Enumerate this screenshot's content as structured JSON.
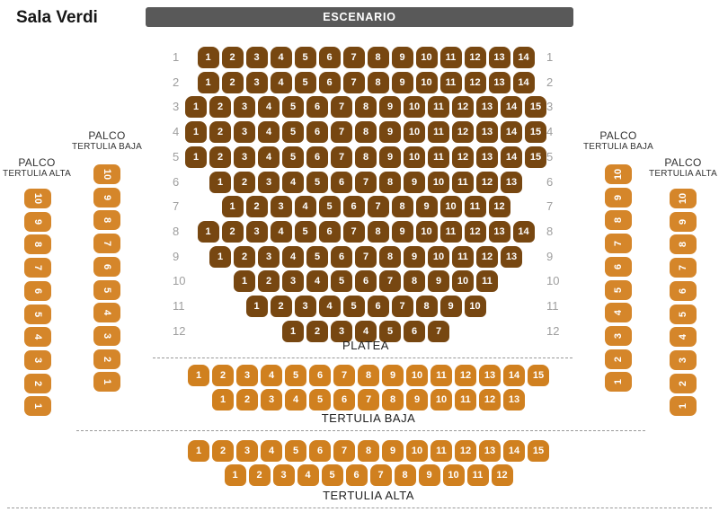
{
  "title": "Sala Verdi",
  "stage": {
    "label": "ESCENARIO"
  },
  "colors": {
    "stage_bg": "#595959",
    "stage_text": "#ffffff",
    "platea_seat": "#774711",
    "tertulia_seat": "#d0801f",
    "palco_seat": "#d5862a",
    "seat_text": "#ffffff",
    "row_label": "#9e9e9e",
    "section_label": "#212121",
    "divider": "#999999"
  },
  "platea": {
    "label": "PLATEA",
    "rows": [
      {
        "row": "1",
        "seats": [
          1,
          2,
          3,
          4,
          5,
          6,
          7,
          8,
          9,
          10,
          11,
          12,
          13,
          14
        ]
      },
      {
        "row": "2",
        "seats": [
          1,
          2,
          3,
          4,
          5,
          6,
          7,
          8,
          9,
          10,
          11,
          12,
          13,
          14
        ]
      },
      {
        "row": "3",
        "seats": [
          1,
          2,
          3,
          4,
          5,
          6,
          7,
          8,
          9,
          10,
          11,
          12,
          13,
          14,
          15
        ]
      },
      {
        "row": "4",
        "seats": [
          1,
          2,
          3,
          4,
          5,
          6,
          7,
          8,
          9,
          10,
          11,
          12,
          13,
          14,
          15
        ]
      },
      {
        "row": "5",
        "seats": [
          1,
          2,
          3,
          4,
          5,
          6,
          7,
          8,
          9,
          10,
          11,
          12,
          13,
          14,
          15
        ]
      },
      {
        "row": "6",
        "seats": [
          1,
          2,
          3,
          4,
          5,
          6,
          7,
          8,
          9,
          10,
          11,
          12,
          13
        ]
      },
      {
        "row": "7",
        "seats": [
          1,
          2,
          3,
          4,
          5,
          6,
          7,
          8,
          9,
          10,
          11,
          12
        ]
      },
      {
        "row": "8",
        "seats": [
          1,
          2,
          3,
          4,
          5,
          6,
          7,
          8,
          9,
          10,
          11,
          12,
          13,
          14
        ]
      },
      {
        "row": "9",
        "seats": [
          1,
          2,
          3,
          4,
          5,
          6,
          7,
          8,
          9,
          10,
          11,
          12,
          13
        ]
      },
      {
        "row": "10",
        "seats": [
          1,
          2,
          3,
          4,
          5,
          6,
          7,
          8,
          9,
          10,
          11
        ]
      },
      {
        "row": "11",
        "seats": [
          1,
          2,
          3,
          4,
          5,
          6,
          7,
          8,
          9,
          10
        ]
      },
      {
        "row": "12",
        "seats": [
          1,
          2,
          3,
          4,
          5,
          6,
          7
        ]
      }
    ]
  },
  "tertulia_baja": {
    "label": "TERTULIA BAJA",
    "rows": [
      {
        "row": "1",
        "seats": [
          1,
          2,
          3,
          4,
          5,
          6,
          7,
          8,
          9,
          10,
          11,
          12,
          13,
          14,
          15
        ]
      },
      {
        "row": "2",
        "seats": [
          1,
          2,
          3,
          4,
          5,
          6,
          7,
          8,
          9,
          10,
          11,
          12,
          13
        ]
      }
    ]
  },
  "tertulia_alta": {
    "label": "TERTULIA ALTA",
    "rows": [
      {
        "row": "1",
        "seats": [
          1,
          2,
          3,
          4,
          5,
          6,
          7,
          8,
          9,
          10,
          11,
          12,
          13,
          14,
          15
        ]
      },
      {
        "row": "2",
        "seats": [
          1,
          2,
          3,
          4,
          5,
          6,
          7,
          8,
          9,
          10,
          11,
          12
        ]
      }
    ]
  },
  "palcos": [
    {
      "id": "palco-tertulia-alta-left",
      "title": "PALCO",
      "subtitle": "TERTULIA ALTA",
      "seats": [
        10,
        9,
        8,
        7,
        6,
        5,
        4,
        3,
        2,
        1
      ]
    },
    {
      "id": "palco-tertulia-baja-left",
      "title": "PALCO",
      "subtitle": "TERTULIA BAJA",
      "seats": [
        10,
        9,
        8,
        7,
        6,
        5,
        4,
        3,
        2,
        1
      ]
    },
    {
      "id": "palco-tertulia-baja-right",
      "title": "PALCO",
      "subtitle": "TERTULIA BAJA",
      "seats": [
        10,
        9,
        8,
        7,
        6,
        5,
        4,
        3,
        2,
        1
      ]
    },
    {
      "id": "palco-tertulia-alta-right",
      "title": "PALCO",
      "subtitle": "TERTULIA ALTA",
      "seats": [
        10,
        9,
        8,
        7,
        6,
        5,
        4,
        3,
        2,
        1
      ]
    }
  ]
}
